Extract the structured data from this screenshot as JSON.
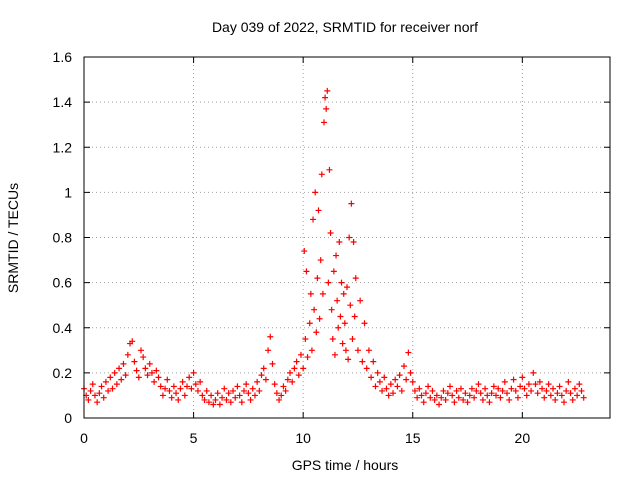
{
  "chart_data": {
    "type": "scatter",
    "title": "Day 039 of 2022, SRMTID for receiver norf",
    "xlabel": "GPS time / hours",
    "ylabel": "SRMTID / TECUs",
    "xlim": [
      0,
      24
    ],
    "ylim": [
      0,
      1.6
    ],
    "x_ticks": [
      0,
      5,
      10,
      15,
      20
    ],
    "y_ticks": [
      0,
      0.2,
      0.4,
      0.6,
      0.8,
      1,
      1.2,
      1.4,
      1.6
    ],
    "x_tick_labels": [
      "0",
      "5",
      "10",
      "15",
      "20"
    ],
    "y_tick_labels": [
      "0",
      "0.2",
      "0.4",
      "0.6",
      "0.8",
      "1",
      "1.2",
      "1.4",
      "1.6"
    ],
    "grid": true,
    "legend": "none",
    "marker": "plus",
    "color": "#ff0000",
    "series": [
      {
        "name": "SRMTID",
        "points": [
          [
            0.0,
            0.13
          ],
          [
            0.1,
            0.1
          ],
          [
            0.2,
            0.08
          ],
          [
            0.3,
            0.12
          ],
          [
            0.4,
            0.15
          ],
          [
            0.5,
            0.1
          ],
          [
            0.6,
            0.07
          ],
          [
            0.7,
            0.11
          ],
          [
            0.8,
            0.14
          ],
          [
            0.9,
            0.09
          ],
          [
            1.0,
            0.16
          ],
          [
            1.1,
            0.12
          ],
          [
            1.2,
            0.18
          ],
          [
            1.3,
            0.13
          ],
          [
            1.4,
            0.2
          ],
          [
            1.5,
            0.15
          ],
          [
            1.6,
            0.22
          ],
          [
            1.7,
            0.17
          ],
          [
            1.8,
            0.24
          ],
          [
            1.9,
            0.19
          ],
          [
            2.0,
            0.28
          ],
          [
            2.1,
            0.33
          ],
          [
            2.2,
            0.34
          ],
          [
            2.3,
            0.25
          ],
          [
            2.4,
            0.21
          ],
          [
            2.5,
            0.18
          ],
          [
            2.6,
            0.3
          ],
          [
            2.7,
            0.27
          ],
          [
            2.8,
            0.22
          ],
          [
            2.9,
            0.19
          ],
          [
            3.0,
            0.24
          ],
          [
            3.1,
            0.2
          ],
          [
            3.2,
            0.16
          ],
          [
            3.3,
            0.21
          ],
          [
            3.4,
            0.18
          ],
          [
            3.5,
            0.14
          ],
          [
            3.6,
            0.1
          ],
          [
            3.7,
            0.13
          ],
          [
            3.8,
            0.17
          ],
          [
            3.9,
            0.12
          ],
          [
            4.0,
            0.09
          ],
          [
            4.1,
            0.14
          ],
          [
            4.2,
            0.11
          ],
          [
            4.3,
            0.08
          ],
          [
            4.4,
            0.13
          ],
          [
            4.5,
            0.16
          ],
          [
            4.6,
            0.1
          ],
          [
            4.7,
            0.14
          ],
          [
            4.8,
            0.18
          ],
          [
            4.9,
            0.13
          ],
          [
            5.0,
            0.2
          ],
          [
            5.1,
            0.15
          ],
          [
            5.2,
            0.12
          ],
          [
            5.3,
            0.16
          ],
          [
            5.4,
            0.1
          ],
          [
            5.5,
            0.08
          ],
          [
            5.6,
            0.12
          ],
          [
            5.7,
            0.07
          ],
          [
            5.8,
            0.1
          ],
          [
            5.9,
            0.06
          ],
          [
            6.0,
            0.08
          ],
          [
            6.1,
            0.11
          ],
          [
            6.2,
            0.06
          ],
          [
            6.3,
            0.09
          ],
          [
            6.4,
            0.13
          ],
          [
            6.5,
            0.08
          ],
          [
            6.6,
            0.11
          ],
          [
            6.7,
            0.07
          ],
          [
            6.8,
            0.12
          ],
          [
            6.9,
            0.09
          ],
          [
            7.0,
            0.14
          ],
          [
            7.1,
            0.1
          ],
          [
            7.2,
            0.07
          ],
          [
            7.3,
            0.12
          ],
          [
            7.4,
            0.15
          ],
          [
            7.5,
            0.11
          ],
          [
            7.6,
            0.08
          ],
          [
            7.7,
            0.13
          ],
          [
            7.8,
            0.1
          ],
          [
            7.9,
            0.16
          ],
          [
            8.0,
            0.12
          ],
          [
            8.1,
            0.19
          ],
          [
            8.2,
            0.22
          ],
          [
            8.3,
            0.17
          ],
          [
            8.4,
            0.3
          ],
          [
            8.5,
            0.36
          ],
          [
            8.6,
            0.24
          ],
          [
            8.7,
            0.15
          ],
          [
            8.8,
            0.11
          ],
          [
            8.9,
            0.08
          ],
          [
            9.0,
            0.1
          ],
          [
            9.1,
            0.14
          ],
          [
            9.2,
            0.12
          ],
          [
            9.3,
            0.17
          ],
          [
            9.4,
            0.2
          ],
          [
            9.5,
            0.16
          ],
          [
            9.6,
            0.22
          ],
          [
            9.7,
            0.25
          ],
          [
            9.8,
            0.19
          ],
          [
            9.9,
            0.28
          ],
          [
            10.0,
            0.22
          ],
          [
            10.05,
            0.74
          ],
          [
            10.1,
            0.35
          ],
          [
            10.15,
            0.65
          ],
          [
            10.2,
            0.27
          ],
          [
            10.3,
            0.42
          ],
          [
            10.35,
            0.55
          ],
          [
            10.4,
            0.3
          ],
          [
            10.45,
            0.88
          ],
          [
            10.5,
            0.48
          ],
          [
            10.55,
            1.0
          ],
          [
            10.6,
            0.38
          ],
          [
            10.65,
            0.62
          ],
          [
            10.7,
            0.92
          ],
          [
            10.75,
            0.44
          ],
          [
            10.8,
            0.7
          ],
          [
            10.85,
            1.08
          ],
          [
            10.9,
            0.55
          ],
          [
            10.95,
            1.31
          ],
          [
            11.0,
            1.42
          ],
          [
            11.05,
            1.37
          ],
          [
            11.1,
            1.45
          ],
          [
            11.15,
            0.6
          ],
          [
            11.2,
            1.1
          ],
          [
            11.25,
            0.82
          ],
          [
            11.3,
            0.48
          ],
          [
            11.35,
            0.35
          ],
          [
            11.4,
            0.65
          ],
          [
            11.45,
            0.28
          ],
          [
            11.5,
            0.72
          ],
          [
            11.55,
            0.52
          ],
          [
            11.6,
            0.4
          ],
          [
            11.65,
            0.78
          ],
          [
            11.7,
            0.45
          ],
          [
            11.75,
            0.6
          ],
          [
            11.8,
            0.33
          ],
          [
            11.85,
            0.55
          ],
          [
            11.9,
            0.42
          ],
          [
            11.95,
            0.3
          ],
          [
            12.0,
            0.58
          ],
          [
            12.05,
            0.26
          ],
          [
            12.1,
            0.8
          ],
          [
            12.15,
            0.5
          ],
          [
            12.2,
            0.95
          ],
          [
            12.25,
            0.35
          ],
          [
            12.3,
            0.78
          ],
          [
            12.35,
            0.45
          ],
          [
            12.4,
            0.62
          ],
          [
            12.5,
            0.3
          ],
          [
            12.6,
            0.52
          ],
          [
            12.7,
            0.25
          ],
          [
            12.8,
            0.42
          ],
          [
            12.9,
            0.22
          ],
          [
            13.0,
            0.3
          ],
          [
            13.1,
            0.18
          ],
          [
            13.2,
            0.25
          ],
          [
            13.3,
            0.14
          ],
          [
            13.4,
            0.2
          ],
          [
            13.5,
            0.16
          ],
          [
            13.6,
            0.12
          ],
          [
            13.7,
            0.18
          ],
          [
            13.8,
            0.13
          ],
          [
            13.9,
            0.1
          ],
          [
            14.0,
            0.15
          ],
          [
            14.1,
            0.11
          ],
          [
            14.2,
            0.17
          ],
          [
            14.3,
            0.14
          ],
          [
            14.4,
            0.19
          ],
          [
            14.5,
            0.12
          ],
          [
            14.6,
            0.23
          ],
          [
            14.7,
            0.17
          ],
          [
            14.8,
            0.29
          ],
          [
            14.9,
            0.2
          ],
          [
            15.0,
            0.16
          ],
          [
            15.1,
            0.12
          ],
          [
            15.2,
            0.09
          ],
          [
            15.3,
            0.13
          ],
          [
            15.4,
            0.1
          ],
          [
            15.5,
            0.07
          ],
          [
            15.6,
            0.11
          ],
          [
            15.7,
            0.14
          ],
          [
            15.8,
            0.09
          ],
          [
            15.9,
            0.12
          ],
          [
            16.0,
            0.08
          ],
          [
            16.1,
            0.1
          ],
          [
            16.2,
            0.06
          ],
          [
            16.3,
            0.09
          ],
          [
            16.4,
            0.12
          ],
          [
            16.5,
            0.08
          ],
          [
            16.6,
            0.11
          ],
          [
            16.7,
            0.14
          ],
          [
            16.8,
            0.1
          ],
          [
            16.9,
            0.07
          ],
          [
            17.0,
            0.12
          ],
          [
            17.1,
            0.09
          ],
          [
            17.2,
            0.13
          ],
          [
            17.3,
            0.08
          ],
          [
            17.4,
            0.11
          ],
          [
            17.5,
            0.07
          ],
          [
            17.6,
            0.1
          ],
          [
            17.7,
            0.13
          ],
          [
            17.8,
            0.09
          ],
          [
            17.9,
            0.12
          ],
          [
            18.0,
            0.15
          ],
          [
            18.1,
            0.11
          ],
          [
            18.2,
            0.08
          ],
          [
            18.3,
            0.13
          ],
          [
            18.4,
            0.1
          ],
          [
            18.5,
            0.07
          ],
          [
            18.6,
            0.11
          ],
          [
            18.7,
            0.14
          ],
          [
            18.8,
            0.1
          ],
          [
            18.9,
            0.13
          ],
          [
            19.0,
            0.09
          ],
          [
            19.1,
            0.12
          ],
          [
            19.2,
            0.16
          ],
          [
            19.3,
            0.11
          ],
          [
            19.4,
            0.08
          ],
          [
            19.5,
            0.13
          ],
          [
            19.6,
            0.17
          ],
          [
            19.7,
            0.12
          ],
          [
            19.8,
            0.09
          ],
          [
            19.9,
            0.14
          ],
          [
            20.0,
            0.18
          ],
          [
            20.1,
            0.13
          ],
          [
            20.2,
            0.1
          ],
          [
            20.3,
            0.15
          ],
          [
            20.4,
            0.12
          ],
          [
            20.5,
            0.2
          ],
          [
            20.6,
            0.15
          ],
          [
            20.7,
            0.11
          ],
          [
            20.8,
            0.16
          ],
          [
            20.9,
            0.13
          ],
          [
            21.0,
            0.09
          ],
          [
            21.1,
            0.12
          ],
          [
            21.2,
            0.15
          ],
          [
            21.3,
            0.1
          ],
          [
            21.4,
            0.13
          ],
          [
            21.5,
            0.08
          ],
          [
            21.6,
            0.11
          ],
          [
            21.7,
            0.14
          ],
          [
            21.8,
            0.1
          ],
          [
            21.9,
            0.07
          ],
          [
            22.0,
            0.12
          ],
          [
            22.1,
            0.16
          ],
          [
            22.2,
            0.11
          ],
          [
            22.3,
            0.08
          ],
          [
            22.4,
            0.13
          ],
          [
            22.5,
            0.1
          ],
          [
            22.6,
            0.15
          ],
          [
            22.7,
            0.12
          ],
          [
            22.8,
            0.09
          ]
        ]
      }
    ]
  }
}
